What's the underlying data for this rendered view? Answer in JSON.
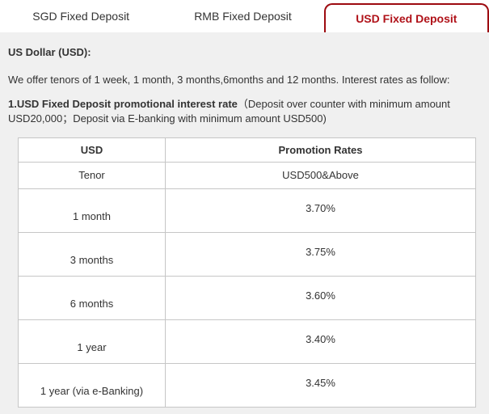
{
  "tabs": [
    {
      "label": "SGD Fixed Deposit",
      "active": false
    },
    {
      "label": "RMB Fixed Deposit",
      "active": false
    },
    {
      "label": "USD Fixed Deposit",
      "active": true
    }
  ],
  "content": {
    "heading": "US Dollar (USD):",
    "intro": "We offer tenors of 1 week, 1 month, 3 months,6months and 12 months. Interest rates as follow:",
    "promo_title": "1.USD Fixed Deposit promotional interest rate",
    "promo_note": "（Deposit over counter with minimum amount USD20,000；Deposit via E-banking with minimum amount USD500)"
  },
  "table": {
    "header": {
      "col1": "USD",
      "col2": "Promotion Rates"
    },
    "subheader": {
      "col1": "Tenor",
      "col2": "USD500&Above"
    },
    "rows": [
      {
        "tenor": "1 month",
        "rate": "3.70%"
      },
      {
        "tenor": "3 months",
        "rate": "3.75%"
      },
      {
        "tenor": "6 months",
        "rate": "3.60%"
      },
      {
        "tenor": "1 year",
        "rate": "3.40%"
      },
      {
        "tenor": "1 year (via e-Banking)",
        "rate": "3.45%"
      }
    ]
  },
  "colors": {
    "accent_red_text": "#b01219",
    "tab_border_red": "#9d0a10",
    "content_bg": "#f0f0f0",
    "table_border": "#c6c6c6"
  }
}
